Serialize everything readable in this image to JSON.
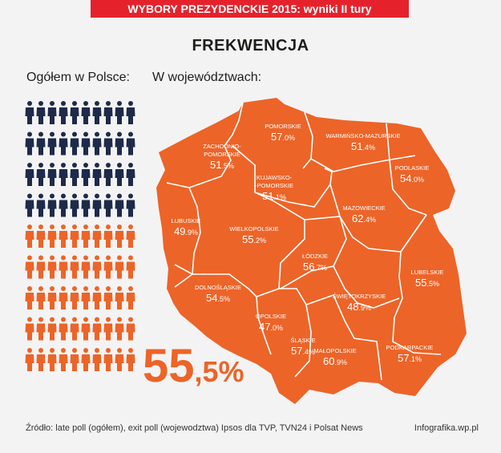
{
  "header": {
    "banner": "WYBORY PREZYDENCKIE 2015: wyniki II tury",
    "title": "FREKWENCJA",
    "subtitle_left": "Ogółem w Polsce:",
    "subtitle_right": "W województwach:"
  },
  "overall": {
    "int": "55",
    "dec": ",5%"
  },
  "footer": {
    "source": "Źródło: late poll (ogółem), exit poll (wojewodztwa) Ipsos dla TVP, TVN24 i Polsat News",
    "credit": "Infografika.wp.pl"
  },
  "colors": {
    "orange": "#ec6428",
    "navy": "#1e2a4a",
    "red": "#e5222c",
    "white": "#ffffff"
  },
  "chart_data": {
    "type": "table",
    "title": "FREKWENCJA",
    "overall_turnout": 55.5,
    "pictogram": {
      "total_figures": 90,
      "orange_figures": 50
    },
    "regions": [
      {
        "name": "POMORSKIE",
        "value": 57.0
      },
      {
        "name": "WARMIŃSKO-MAZURSKIE",
        "value": 51.4
      },
      {
        "name": "ZACHODNIO-POMORSKIE",
        "value": 51.5
      },
      {
        "name": "KUJAWSKO-POMORSKIE",
        "value": 51.1
      },
      {
        "name": "PODLASKIE",
        "value": 54.0
      },
      {
        "name": "MAZOWIECKIE",
        "value": 62.4
      },
      {
        "name": "LUBUSKIE",
        "value": 49.9
      },
      {
        "name": "WIELKOPOLSKIE",
        "value": 55.2
      },
      {
        "name": "ŁÓDZKIE",
        "value": 56.7
      },
      {
        "name": "LUBELSKIE",
        "value": 55.5
      },
      {
        "name": "DOLNOŚLĄSKIE",
        "value": 54.5
      },
      {
        "name": "ŚWIĘTOKRZYSKIE",
        "value": 48.9
      },
      {
        "name": "OPOLSKIE",
        "value": 47.0
      },
      {
        "name": "ŚLĄSKIE",
        "value": 57.4
      },
      {
        "name": "PODKARPACKIE",
        "value": 57.1
      },
      {
        "name": "MAŁOPOLSKIE",
        "value": 60.9
      }
    ]
  },
  "map_labels": [
    {
      "name": "POMORSKIE",
      "int": "57",
      "dec": ".0%"
    },
    {
      "name": "WARMIŃSKO-MAZURSKIE",
      "int": "51",
      "dec": ".4%"
    },
    {
      "name": "ZACHODNIO-",
      "name2": "POMORSKIE",
      "int": "51",
      "dec": ".5%"
    },
    {
      "name": "KUJAWSKO-",
      "name2": "-POMORSKIE",
      "int": "51",
      "dec": ".1%"
    },
    {
      "name": "PODLASKIE",
      "int": "54",
      "dec": ".0%"
    },
    {
      "name": "MAZOWIECKIE",
      "int": "62",
      "dec": ".4%"
    },
    {
      "name": "LUBUSKIE",
      "int": "49",
      "dec": ".9%"
    },
    {
      "name": "WIELKOPOLSKIE",
      "int": "55",
      "dec": ".2%"
    },
    {
      "name": "ŁÓDZKIE",
      "int": "56",
      "dec": ".7%"
    },
    {
      "name": "LUBELSKIE",
      "int": "55",
      "dec": ".5%"
    },
    {
      "name": "DOLNOŚLĄSKIE",
      "int": "54",
      "dec": ".5%"
    },
    {
      "name": "ŚWIĘTOKRZYSKIE",
      "int": "48",
      "dec": ".9%"
    },
    {
      "name": "OPOLSKIE",
      "int": "47",
      "dec": ".0%"
    },
    {
      "name": "ŚLĄSKIE",
      "int": "57",
      "dec": ".4%"
    },
    {
      "name": "PODKARPACKIE",
      "int": "57",
      "dec": ".1%"
    },
    {
      "name": "MAŁOPOLSKIE",
      "int": "60",
      "dec": ".9%"
    }
  ]
}
